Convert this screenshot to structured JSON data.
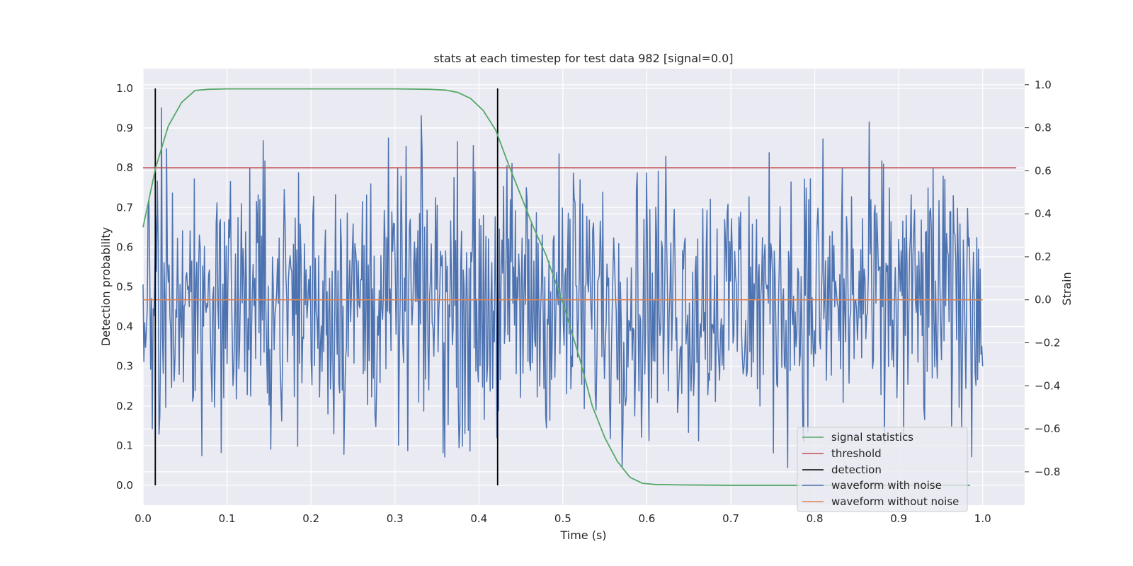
{
  "chart_data": {
    "type": "line",
    "title": "stats at each timestep for test data 982 [signal=0.0]",
    "xlabel": "Time (s)",
    "ylabel": "Detection probability",
    "ylabel_right": "Strain",
    "xlim": [
      0.0,
      1.05
    ],
    "ylim": [
      -0.05,
      1.05
    ],
    "ylim_right": [
      -0.955,
      1.075
    ],
    "x_ticks": [
      "0.0",
      "0.1",
      "0.2",
      "0.3",
      "0.4",
      "0.5",
      "0.6",
      "0.7",
      "0.8",
      "0.9",
      "1.0"
    ],
    "y_ticks": [
      "0.0",
      "0.1",
      "0.2",
      "0.3",
      "0.4",
      "0.5",
      "0.6",
      "0.7",
      "0.8",
      "0.9",
      "1.0"
    ],
    "y_ticks_right": [
      "−0.8",
      "−0.6",
      "−0.4",
      "−0.2",
      "0.0",
      "0.2",
      "0.4",
      "0.6",
      "0.8",
      "1.0"
    ],
    "grid": true,
    "legend_position": "lower-right",
    "colors": {
      "signal_statistics": "#55a868",
      "threshold": "#c44e52",
      "detection": "#000000",
      "waveform_with_noise": "#4c72b0",
      "waveform_without_noise": "#dd8452",
      "plot_background": "#eaeaf2",
      "grid": "#ffffff"
    },
    "series": [
      {
        "name": "signal statistics",
        "axis": "left",
        "x": [
          0.0,
          0.015,
          0.03,
          0.046,
          0.062,
          0.078,
          0.1,
          0.2,
          0.3,
          0.34,
          0.36,
          0.375,
          0.39,
          0.405,
          0.42,
          0.435,
          0.45,
          0.465,
          0.48,
          0.5,
          0.52,
          0.535,
          0.55,
          0.565,
          0.58,
          0.595,
          0.61,
          0.64,
          0.7,
          0.8,
          0.9,
          0.985
        ],
        "y": [
          0.65,
          0.8,
          0.905,
          0.965,
          0.995,
          0.998,
          0.999,
          0.999,
          0.999,
          0.998,
          0.996,
          0.99,
          0.975,
          0.945,
          0.895,
          0.81,
          0.73,
          0.65,
          0.58,
          0.46,
          0.32,
          0.2,
          0.12,
          0.06,
          0.02,
          0.005,
          0.002,
          0.001,
          0.0,
          0.0,
          0.0,
          0.0
        ]
      },
      {
        "name": "threshold",
        "axis": "left",
        "x": [
          0.0,
          1.04
        ],
        "y": [
          0.8,
          0.8
        ]
      },
      {
        "name": "detection",
        "axis": "left",
        "segments": [
          {
            "x": 0.0146,
            "y0": 0.0,
            "y1": 1.0
          },
          {
            "x": 0.4223,
            "y0": 0.0,
            "y1": 1.0
          }
        ]
      },
      {
        "name": "waveform with noise",
        "axis": "right",
        "x_start": 0.0,
        "x_end": 1.0,
        "envelope": 0.4,
        "y": []
      },
      {
        "name": "waveform without noise",
        "axis": "right",
        "x": [
          0.0,
          1.0
        ],
        "y": [
          0.0,
          0.0
        ]
      }
    ]
  }
}
